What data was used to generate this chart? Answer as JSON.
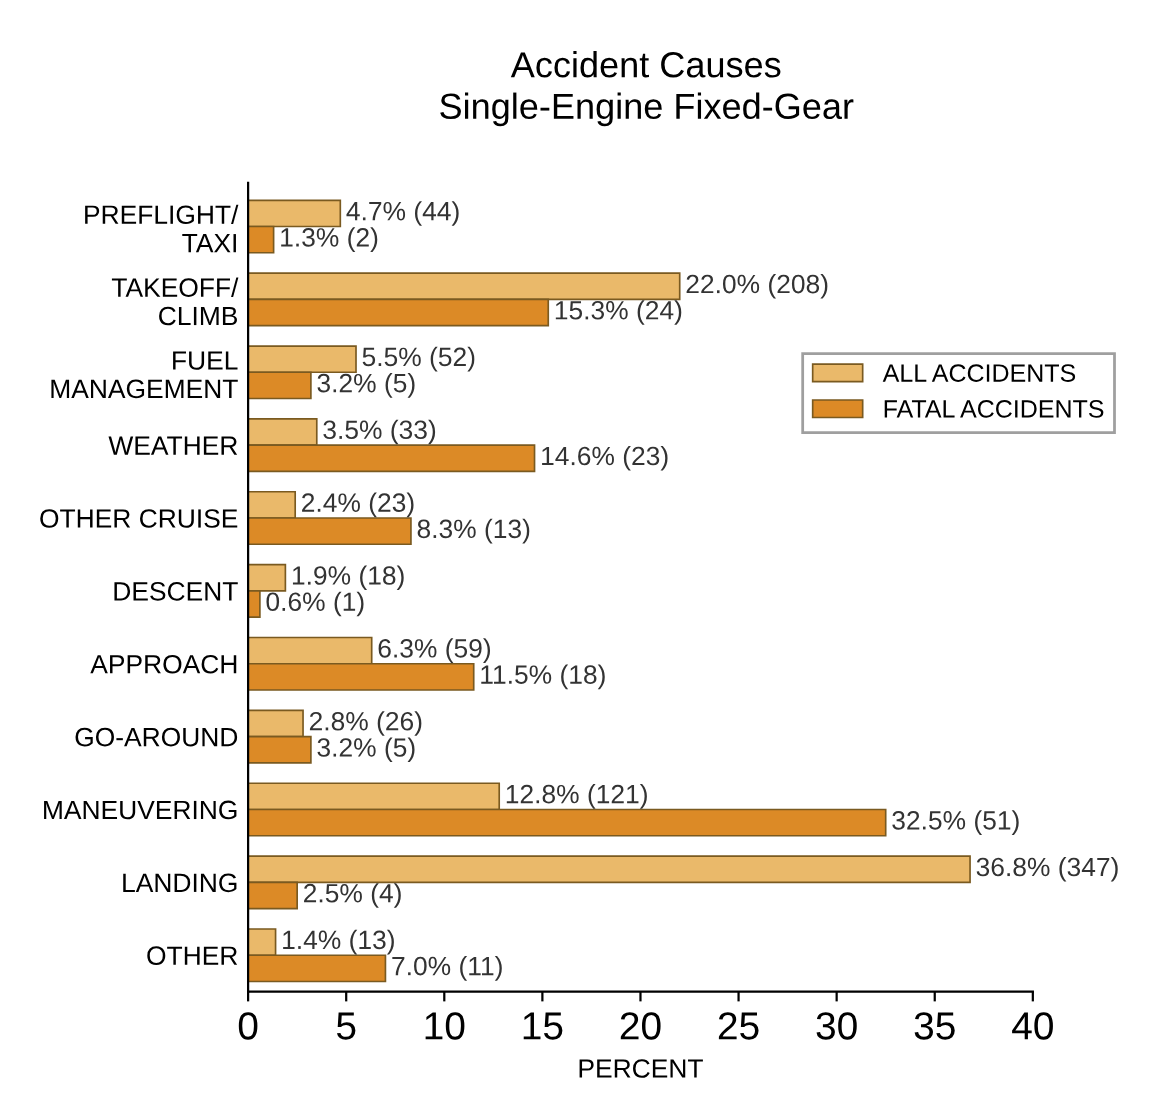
{
  "chart_data": {
    "type": "bar",
    "orientation": "horizontal",
    "title": "Accident Causes\nSingle-Engine Fixed-Gear",
    "xlabel": "PERCENT",
    "categories": [
      "PREFLIGHT/\nTAXI",
      "TAKEOFF/\nCLIMB",
      "FUEL\nMANAGEMENT",
      "WEATHER",
      "OTHER CRUISE",
      "DESCENT",
      "APPROACH",
      "GO-AROUND",
      "MANEUVERING",
      "LANDING",
      "OTHER"
    ],
    "series": [
      {
        "name": "ALL ACCIDENTS",
        "color": "#eab96a",
        "values": [
          4.7,
          22.0,
          5.5,
          3.5,
          2.4,
          1.9,
          6.3,
          2.8,
          12.8,
          36.8,
          1.4
        ],
        "value_labels": [
          "4.7% (44)",
          "22.0% (208)",
          "5.5% (52)",
          "3.5% (33)",
          "2.4% (23)",
          "1.9% (18)",
          "6.3% (59)",
          "2.8% (26)",
          "12.8% (121)",
          "36.8% (347)",
          "1.4% (13)"
        ]
      },
      {
        "name": "FATAL ACCIDENTS",
        "color": "#dc8a26",
        "values": [
          1.3,
          15.3,
          3.2,
          14.6,
          8.3,
          0.6,
          11.5,
          3.2,
          32.5,
          2.5,
          7.0
        ],
        "value_labels": [
          "1.3% (2)",
          "15.3% (24)",
          "3.2% (5)",
          "14.6% (23)",
          "8.3% (13)",
          "0.6% (1)",
          "11.5% (18)",
          "3.2% (5)",
          "32.5% (51)",
          "2.5% (4)",
          "7.0% (11)"
        ]
      }
    ],
    "xlim": [
      0,
      40
    ],
    "xticks": [
      0,
      5,
      10,
      15,
      20,
      25,
      30,
      35,
      40
    ],
    "legend": "right",
    "grid": false
  }
}
